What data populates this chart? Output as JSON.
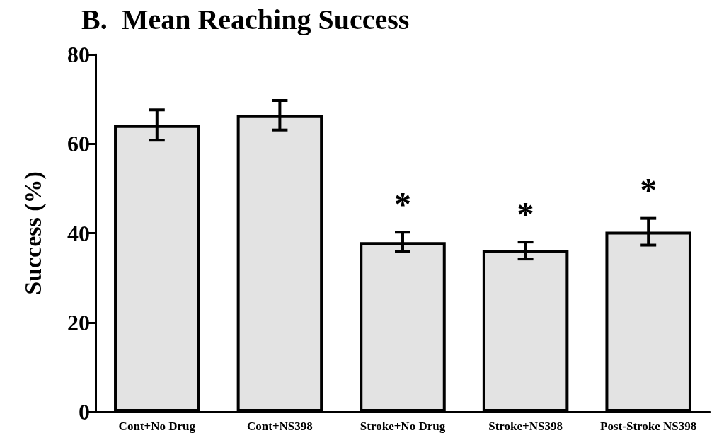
{
  "chart_data": {
    "type": "bar",
    "title": "B.  Mean Reaching Success",
    "ylabel": "Success (%)",
    "categories": [
      "Cont+No Drug",
      "Cont+NS398",
      "Stroke+No Drug",
      "Stroke+NS398",
      "Post-Stroke NS398"
    ],
    "values": [
      64.2,
      66.4,
      38.0,
      36.1,
      40.3
    ],
    "errors": [
      3.4,
      3.3,
      2.2,
      1.9,
      3.0
    ],
    "color": "#e3e3e3",
    "ylim": [
      0,
      80
    ],
    "yticks": [
      0,
      20,
      40,
      60,
      80
    ],
    "grid": false,
    "annotations": [
      {
        "text": "*",
        "x": "Stroke+No Drug",
        "y": 38.0
      },
      {
        "text": "*",
        "x": "Stroke+NS398",
        "y": 36.1
      },
      {
        "text": "*",
        "x": "Post-Stroke NS398",
        "y": 40.3
      }
    ]
  }
}
